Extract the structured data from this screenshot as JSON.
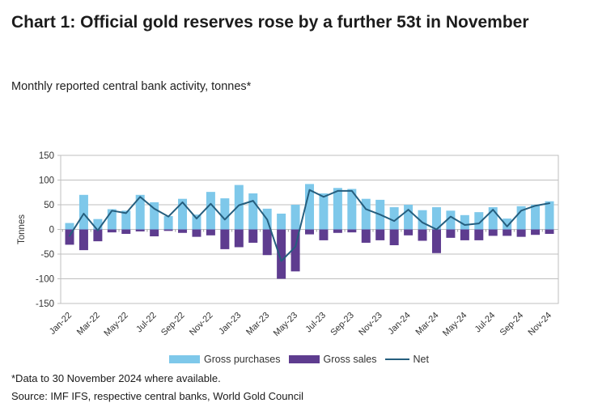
{
  "header": {
    "title": "Chart 1: Official gold reserves rose by a further 53t in November",
    "subtitle": "Monthly reported central bank activity, tonnes*"
  },
  "footer": {
    "note": "*Data to 30 November 2024 where available.",
    "source": "Source: IMF IFS, respective central banks, World Gold Council"
  },
  "chart_data": {
    "type": "bar",
    "title": "Chart 1: Official gold reserves rose by a further 53t in November",
    "subtitle": "Monthly reported central bank activity, tonnes*",
    "ylabel": "Tonnes",
    "xlabel": "",
    "ylim": [
      -150,
      150
    ],
    "yticks": [
      150,
      100,
      50,
      0,
      -50,
      -100,
      -150
    ],
    "grid": true,
    "legend_position": "bottom",
    "x_label_interval": 2,
    "categories": [
      "Jan-22",
      "Feb-22",
      "Mar-22",
      "Apr-22",
      "May-22",
      "Jun-22",
      "Jul-22",
      "Aug-22",
      "Sep-22",
      "Oct-22",
      "Nov-22",
      "Dec-22",
      "Jan-23",
      "Feb-23",
      "Mar-23",
      "Apr-23",
      "May-23",
      "Jun-23",
      "Jul-23",
      "Aug-23",
      "Sep-23",
      "Oct-23",
      "Nov-23",
      "Dec-23",
      "Jan-24",
      "Feb-24",
      "Mar-24",
      "Apr-24",
      "May-24",
      "Jun-24",
      "Jul-24",
      "Aug-24",
      "Sep-24",
      "Oct-24",
      "Nov-24"
    ],
    "shown_x_tick_labels": [
      "Jan-22",
      "Mar-22",
      "May-22",
      "Jul-22",
      "Sep-22",
      "Nov-22",
      "Jan-23",
      "Mar-23",
      "May-23",
      "Jul-23",
      "Sep-23",
      "Nov-23",
      "Jan-24",
      "Mar-24",
      "May-24",
      "Jul-24",
      "Sep-24",
      "Nov-24"
    ],
    "series": [
      {
        "name": "Gross purchases",
        "render": "bar",
        "color": "#7EC8EA",
        "values": [
          13,
          70,
          21,
          41,
          38,
          70,
          55,
          27,
          62,
          30,
          76,
          63,
          90,
          73,
          42,
          32,
          50,
          92,
          73,
          84,
          82,
          62,
          60,
          45,
          50,
          39,
          45,
          38,
          29,
          35,
          45,
          22,
          47,
          50,
          57
        ]
      },
      {
        "name": "Gross sales",
        "render": "bar",
        "color": "#5E3C8F",
        "values": [
          -31,
          -42,
          -24,
          -6,
          -9,
          -4,
          -14,
          -3,
          -7,
          -15,
          -12,
          -40,
          -36,
          -27,
          -52,
          -100,
          -85,
          -10,
          -22,
          -7,
          -6,
          -27,
          -22,
          -32,
          -12,
          -23,
          -48,
          -17,
          -22,
          -22,
          -13,
          -13,
          -15,
          -11,
          -9
        ]
      },
      {
        "name": "Net",
        "render": "line",
        "color": "#255E7E",
        "values": [
          -13,
          32,
          -2,
          38,
          33,
          66,
          42,
          26,
          55,
          22,
          52,
          20,
          49,
          58,
          20,
          -64,
          -35,
          80,
          66,
          78,
          78,
          41,
          30,
          17,
          40,
          14,
          0,
          26,
          9,
          12,
          40,
          6,
          38,
          48,
          53
        ]
      }
    ],
    "axis_color": "#bfbfbf",
    "tick_text_color": "#333333"
  }
}
